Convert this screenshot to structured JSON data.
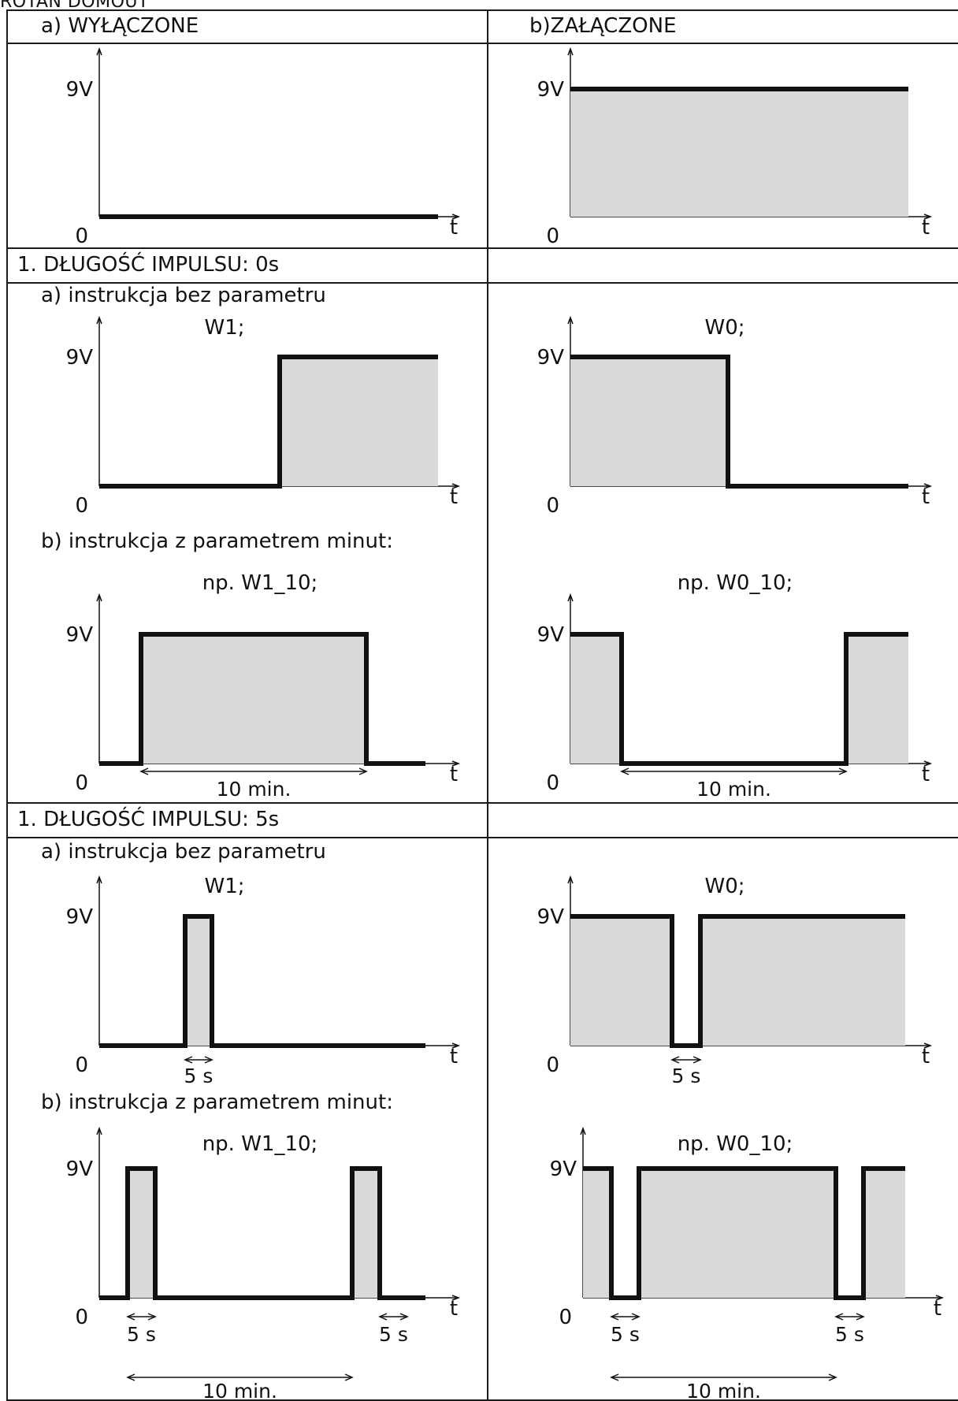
{
  "page_header": "ROTAN DOMOUT",
  "row_initial": {
    "left_title": "a) WYŁĄCZONE",
    "right_title": "b)ZAŁĄCZONE"
  },
  "section_0s": {
    "title": "1. DŁUGOŚĆ IMPULSU: 0s",
    "sub_a": "a) instrukcja bez parametru",
    "sub_b": "b) instrukcja z parametrem minut:"
  },
  "section_5s": {
    "title": "1. DŁUGOŚĆ IMPULSU: 5s",
    "sub_a": "a) instrukcja bez parametru",
    "sub_b": "b) instrukcja z parametrem minut:"
  },
  "axis": {
    "high": "9V",
    "low": "0",
    "time": "t"
  },
  "commands": {
    "w1": "W1;",
    "w0": "W0;",
    "w1_10": "np. W1_10;",
    "w0_10": "np. W0_10;"
  },
  "dimensions": {
    "pulse": "5 s",
    "period": "10 min."
  },
  "colors": {
    "line": "#111111",
    "fill": "#d9d9d9",
    "border": "#1a1a1a"
  }
}
